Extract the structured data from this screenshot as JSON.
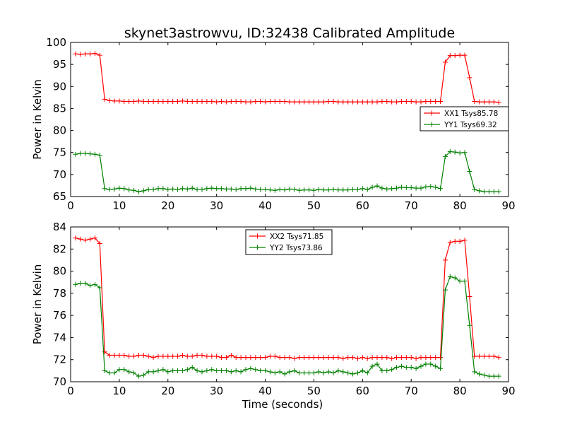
{
  "title": "skynet3astrowvu, ID:32438 Calibrated Amplitude",
  "chart_data": [
    {
      "type": "line",
      "ylabel": "Power in Kelvin",
      "xlabel": "",
      "xlim": [
        0,
        90
      ],
      "ylim": [
        65,
        100
      ],
      "xticks": [
        "0",
        "10",
        "20",
        "30",
        "40",
        "50",
        "60",
        "70",
        "80",
        "90"
      ],
      "yticks": [
        "65",
        "70",
        "75",
        "80",
        "85",
        "90",
        "95",
        "100"
      ],
      "legend_position": "center-right",
      "series": [
        {
          "name": "XX1 Tsys85.78",
          "color": "#ff0000",
          "x": [
            1,
            2,
            3,
            4,
            5,
            6,
            7,
            8,
            9,
            10,
            11,
            12,
            13,
            14,
            15,
            16,
            17,
            18,
            19,
            20,
            21,
            22,
            23,
            24,
            25,
            26,
            27,
            28,
            29,
            30,
            31,
            32,
            33,
            34,
            35,
            36,
            37,
            38,
            39,
            40,
            41,
            42,
            43,
            44,
            45,
            46,
            47,
            48,
            49,
            50,
            51,
            52,
            53,
            54,
            55,
            56,
            57,
            58,
            59,
            60,
            61,
            62,
            63,
            64,
            65,
            66,
            67,
            68,
            69,
            70,
            71,
            72,
            73,
            74,
            75,
            76,
            77,
            78,
            79,
            80,
            81,
            82,
            83,
            84,
            85,
            86,
            87,
            88
          ],
          "values": [
            97.4,
            97.3,
            97.4,
            97.4,
            97.5,
            97.1,
            87.1,
            86.8,
            86.7,
            86.7,
            86.6,
            86.6,
            86.6,
            86.7,
            86.6,
            86.6,
            86.6,
            86.6,
            86.6,
            86.6,
            86.6,
            86.6,
            86.7,
            86.6,
            86.6,
            86.6,
            86.6,
            86.6,
            86.6,
            86.5,
            86.6,
            86.5,
            86.6,
            86.6,
            86.6,
            86.5,
            86.5,
            86.6,
            86.6,
            86.5,
            86.6,
            86.6,
            86.6,
            86.6,
            86.5,
            86.5,
            86.5,
            86.5,
            86.5,
            86.5,
            86.5,
            86.5,
            86.6,
            86.6,
            86.5,
            86.5,
            86.5,
            86.5,
            86.5,
            86.5,
            86.5,
            86.5,
            86.5,
            86.6,
            86.6,
            86.5,
            86.5,
            86.6,
            86.6,
            86.6,
            86.5,
            86.5,
            86.6,
            86.6,
            86.6,
            86.6,
            95.5,
            97.0,
            97.0,
            97.1,
            97.1,
            92.0,
            86.6,
            86.5,
            86.5,
            86.5,
            86.5,
            86.4
          ]
        },
        {
          "name": "YY1 Tsys69.32",
          "color": "#008000",
          "x": [
            1,
            2,
            3,
            4,
            5,
            6,
            7,
            8,
            9,
            10,
            11,
            12,
            13,
            14,
            15,
            16,
            17,
            18,
            19,
            20,
            21,
            22,
            23,
            24,
            25,
            26,
            27,
            28,
            29,
            30,
            31,
            32,
            33,
            34,
            35,
            36,
            37,
            38,
            39,
            40,
            41,
            42,
            43,
            44,
            45,
            46,
            47,
            48,
            49,
            50,
            51,
            52,
            53,
            54,
            55,
            56,
            57,
            58,
            59,
            60,
            61,
            62,
            63,
            64,
            65,
            66,
            67,
            68,
            69,
            70,
            71,
            72,
            73,
            74,
            75,
            76,
            77,
            78,
            79,
            80,
            81,
            82,
            83,
            84,
            85,
            86,
            87,
            88
          ],
          "values": [
            74.6,
            74.8,
            74.8,
            74.7,
            74.6,
            74.4,
            66.8,
            66.6,
            66.7,
            66.9,
            66.8,
            66.5,
            66.4,
            66.1,
            66.3,
            66.6,
            66.6,
            66.8,
            66.8,
            66.6,
            66.7,
            66.6,
            66.8,
            66.7,
            66.9,
            66.6,
            66.6,
            66.8,
            66.9,
            66.8,
            66.8,
            66.7,
            66.7,
            66.6,
            66.8,
            66.8,
            66.9,
            66.7,
            66.6,
            66.6,
            66.5,
            66.4,
            66.6,
            66.5,
            66.7,
            66.6,
            66.4,
            66.5,
            66.5,
            66.4,
            66.6,
            66.5,
            66.5,
            66.6,
            66.5,
            66.5,
            66.5,
            66.6,
            66.6,
            66.8,
            66.6,
            67.1,
            67.4,
            66.9,
            66.7,
            66.8,
            66.9,
            67.1,
            67.0,
            67.0,
            66.9,
            66.9,
            67.2,
            67.3,
            67.1,
            66.8,
            74.1,
            75.2,
            75.1,
            74.9,
            75.0,
            70.7,
            66.6,
            66.3,
            66.1,
            66.1,
            66.1,
            66.1
          ]
        }
      ]
    },
    {
      "type": "line",
      "ylabel": "Power in Kelvin",
      "xlabel": "Time (seconds)",
      "xlim": [
        0,
        90
      ],
      "ylim": [
        70,
        84
      ],
      "xticks": [
        "0",
        "10",
        "20",
        "30",
        "40",
        "50",
        "60",
        "70",
        "80",
        "90"
      ],
      "yticks": [
        "70",
        "72",
        "74",
        "76",
        "78",
        "80",
        "82",
        "84"
      ],
      "legend_position": "upper-center",
      "series": [
        {
          "name": "XX2 Tsys71.85",
          "color": "#ff0000",
          "x": [
            1,
            2,
            3,
            4,
            5,
            6,
            7,
            8,
            9,
            10,
            11,
            12,
            13,
            14,
            15,
            16,
            17,
            18,
            19,
            20,
            21,
            22,
            23,
            24,
            25,
            26,
            27,
            28,
            29,
            30,
            31,
            32,
            33,
            34,
            35,
            36,
            37,
            38,
            39,
            40,
            41,
            42,
            43,
            44,
            45,
            46,
            47,
            48,
            49,
            50,
            51,
            52,
            53,
            54,
            55,
            56,
            57,
            58,
            59,
            60,
            61,
            62,
            63,
            64,
            65,
            66,
            67,
            68,
            69,
            70,
            71,
            72,
            73,
            74,
            75,
            76,
            77,
            78,
            79,
            80,
            81,
            82,
            83,
            84,
            85,
            86,
            87,
            88
          ],
          "values": [
            83.0,
            82.9,
            82.8,
            82.9,
            83.0,
            82.5,
            72.7,
            72.4,
            72.4,
            72.4,
            72.4,
            72.3,
            72.3,
            72.4,
            72.4,
            72.3,
            72.2,
            72.3,
            72.3,
            72.3,
            72.3,
            72.3,
            72.4,
            72.3,
            72.3,
            72.4,
            72.4,
            72.3,
            72.3,
            72.3,
            72.2,
            72.2,
            72.4,
            72.2,
            72.2,
            72.2,
            72.2,
            72.2,
            72.2,
            72.2,
            72.3,
            72.3,
            72.2,
            72.2,
            72.2,
            72.1,
            72.2,
            72.2,
            72.2,
            72.2,
            72.2,
            72.2,
            72.2,
            72.2,
            72.2,
            72.1,
            72.2,
            72.2,
            72.1,
            72.2,
            72.1,
            72.2,
            72.2,
            72.2,
            72.2,
            72.1,
            72.2,
            72.2,
            72.2,
            72.2,
            72.1,
            72.2,
            72.2,
            72.2,
            72.2,
            72.2,
            81.0,
            82.6,
            82.7,
            82.7,
            82.8,
            77.7,
            72.3,
            72.3,
            72.3,
            72.3,
            72.3,
            72.2
          ]
        },
        {
          "name": "YY2 Tsys73.86",
          "color": "#008000",
          "x": [
            1,
            2,
            3,
            4,
            5,
            6,
            7,
            8,
            9,
            10,
            11,
            12,
            13,
            14,
            15,
            16,
            17,
            18,
            19,
            20,
            21,
            22,
            23,
            24,
            25,
            26,
            27,
            28,
            29,
            30,
            31,
            32,
            33,
            34,
            35,
            36,
            37,
            38,
            39,
            40,
            41,
            42,
            43,
            44,
            45,
            46,
            47,
            48,
            49,
            50,
            51,
            52,
            53,
            54,
            55,
            56,
            57,
            58,
            59,
            60,
            61,
            62,
            63,
            64,
            65,
            66,
            67,
            68,
            69,
            70,
            71,
            72,
            73,
            74,
            75,
            76,
            77,
            78,
            79,
            80,
            81,
            82,
            83,
            84,
            85,
            86,
            87,
            88
          ],
          "values": [
            78.8,
            78.9,
            78.9,
            78.7,
            78.8,
            78.5,
            71.0,
            70.8,
            70.8,
            71.1,
            71.1,
            70.9,
            70.8,
            70.5,
            70.6,
            70.9,
            70.9,
            71.0,
            71.1,
            70.9,
            71.0,
            71.0,
            71.0,
            71.1,
            71.3,
            71.0,
            70.9,
            71.0,
            71.1,
            71.0,
            71.0,
            71.0,
            70.9,
            71.0,
            70.9,
            71.1,
            71.2,
            71.1,
            71.0,
            71.0,
            70.9,
            70.8,
            70.9,
            70.7,
            70.9,
            71.0,
            70.8,
            70.8,
            70.8,
            70.8,
            70.9,
            70.8,
            70.9,
            70.8,
            71.0,
            70.9,
            70.8,
            70.7,
            70.8,
            71.0,
            70.8,
            71.4,
            71.6,
            71.0,
            71.0,
            71.1,
            71.3,
            71.4,
            71.3,
            71.3,
            71.2,
            71.4,
            71.6,
            71.6,
            71.4,
            71.2,
            78.3,
            79.5,
            79.4,
            79.1,
            79.1,
            75.1,
            70.9,
            70.7,
            70.6,
            70.5,
            70.5,
            70.5
          ]
        }
      ]
    }
  ]
}
